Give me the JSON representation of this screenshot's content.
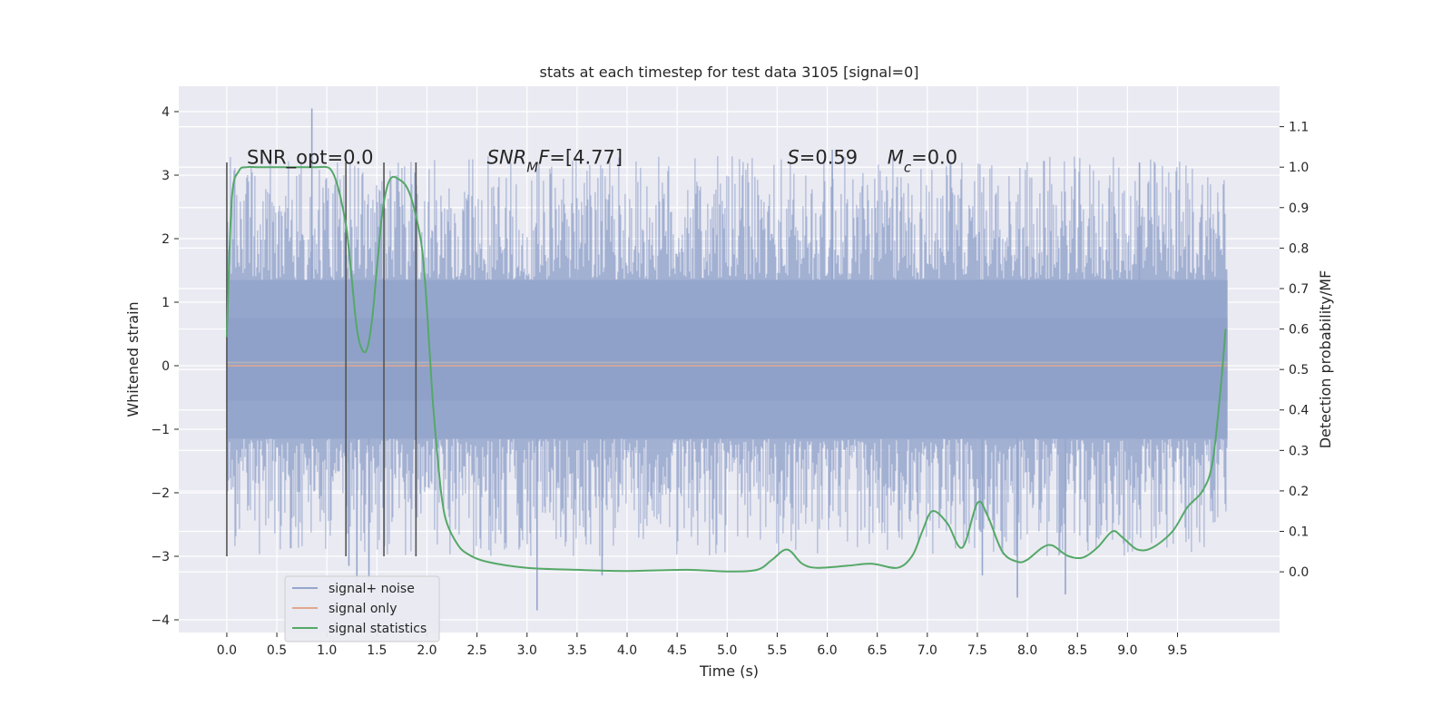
{
  "chart_data": {
    "type": "line",
    "title": "stats at each timestep for test data 3105 [signal=0]",
    "xlabel": "Time (s)",
    "ylabel": "Whitened strain",
    "y2label": "Detection probability/MF",
    "xlim": [
      -0.48,
      10.52
    ],
    "ylim": [
      -4.2,
      4.4
    ],
    "y2lim": [
      -0.15,
      1.2
    ],
    "x_ticks": [
      0.0,
      0.5,
      1.0,
      1.5,
      2.0,
      2.5,
      3.0,
      3.5,
      4.0,
      4.5,
      5.0,
      5.5,
      6.0,
      6.5,
      7.0,
      7.5,
      8.0,
      8.5,
      9.0,
      9.5
    ],
    "x_tick_labels": [
      "0.0",
      "0.5",
      "1.0",
      "1.5",
      "2.0",
      "2.5",
      "3.0",
      "3.5",
      "4.0",
      "4.5",
      "5.0",
      "5.5",
      "6.0",
      "6.5",
      "7.0",
      "7.5",
      "8.0",
      "8.5",
      "9.0",
      "9.5"
    ],
    "y_ticks": [
      -4,
      -3,
      -2,
      -1,
      0,
      1,
      2,
      3,
      4
    ],
    "y_tick_labels": [
      "−4",
      "−3",
      "−2",
      "−1",
      "0",
      "1",
      "2",
      "3",
      "4"
    ],
    "y2_ticks": [
      0.0,
      0.1,
      0.2,
      0.3,
      0.4,
      0.5,
      0.6,
      0.7,
      0.8,
      0.9,
      1.0,
      1.1
    ],
    "y2_tick_labels": [
      "0.0",
      "0.1",
      "0.2",
      "0.3",
      "0.4",
      "0.5",
      "0.6",
      "0.7",
      "0.8",
      "0.9",
      "1.0",
      "1.1"
    ],
    "grid": true,
    "legend_position": "lower-left",
    "noise": {
      "x_range": [
        0.0,
        10.0
      ],
      "band_outer": [
        -1.15,
        1.35
      ],
      "band_inner": [
        -0.55,
        0.75
      ],
      "spike_max_range": [
        1.4,
        3.3
      ],
      "spike_min_range": [
        -3.0,
        -1.2
      ],
      "highlight_spikes": [
        {
          "x": 0.85,
          "y": 4.05
        },
        {
          "x": 1.22,
          "y": -3.15
        },
        {
          "x": 1.3,
          "y": -3.5
        },
        {
          "x": 1.42,
          "y": -3.4
        },
        {
          "x": 3.1,
          "y": -3.85
        },
        {
          "x": 3.75,
          "y": -3.3
        },
        {
          "x": 6.05,
          "y": 3.4
        },
        {
          "x": 7.55,
          "y": -3.3
        },
        {
          "x": 7.9,
          "y": -3.65
        },
        {
          "x": 8.38,
          "y": -3.6
        },
        {
          "x": 9.12,
          "y": 3.2
        }
      ]
    },
    "series": [
      {
        "name": "signal+ noise",
        "color": "#95a6cc"
      },
      {
        "name": "signal only",
        "color": "#e1a78d",
        "y": 0.0
      },
      {
        "name": "signal statistics",
        "color": "#55a868",
        "x": [
          0.0,
          0.05,
          0.12,
          0.2,
          0.3,
          0.5,
          0.7,
          0.9,
          1.0,
          1.05,
          1.1,
          1.15,
          1.2,
          1.25,
          1.3,
          1.35,
          1.4,
          1.45,
          1.5,
          1.55,
          1.6,
          1.65,
          1.72,
          1.8,
          1.87,
          1.95,
          2.0,
          2.05,
          2.1,
          2.15,
          2.2,
          2.3,
          2.4,
          2.6,
          3.0,
          3.5,
          4.0,
          4.6,
          5.0,
          5.3,
          5.45,
          5.6,
          5.75,
          5.9,
          6.2,
          6.45,
          6.7,
          6.85,
          6.95,
          7.05,
          7.2,
          7.35,
          7.5,
          7.6,
          7.75,
          7.9,
          8.0,
          8.15,
          8.25,
          8.4,
          8.55,
          8.7,
          8.85,
          8.95,
          9.1,
          9.25,
          9.45,
          9.6,
          9.75,
          9.85,
          9.93,
          9.98
        ],
        "y": [
          0.58,
          0.92,
          0.99,
          1.0,
          1.0,
          1.0,
          1.0,
          1.0,
          1.0,
          0.99,
          0.96,
          0.91,
          0.84,
          0.72,
          0.6,
          0.55,
          0.55,
          0.62,
          0.75,
          0.88,
          0.95,
          0.975,
          0.97,
          0.95,
          0.9,
          0.8,
          0.65,
          0.45,
          0.3,
          0.18,
          0.12,
          0.07,
          0.045,
          0.025,
          0.01,
          0.005,
          0.002,
          0.005,
          0.001,
          0.005,
          0.03,
          0.055,
          0.02,
          0.01,
          0.015,
          0.02,
          0.01,
          0.04,
          0.1,
          0.15,
          0.12,
          0.06,
          0.17,
          0.14,
          0.05,
          0.025,
          0.03,
          0.06,
          0.065,
          0.04,
          0.035,
          0.06,
          0.1,
          0.085,
          0.055,
          0.06,
          0.1,
          0.16,
          0.2,
          0.27,
          0.45,
          0.6
        ],
        "axis": "right"
      }
    ],
    "vertical_markers": {
      "x": [
        0.0,
        1.19,
        1.57,
        1.89
      ],
      "y_top": 3.2,
      "y_bottom": -3.0,
      "color": "#555555"
    },
    "annotations": [
      {
        "id": "snr-opt",
        "parts": [
          {
            "t": "SNR_opt=0.0"
          }
        ],
        "x": 0.2,
        "y": 3.18
      },
      {
        "id": "snr-mf",
        "parts": [
          {
            "t": "SNR",
            "i": true
          },
          {
            "t": "M",
            "i": true,
            "sub": true
          },
          {
            "t": "F",
            "i": true
          },
          {
            "t": "=[4.77]"
          }
        ],
        "x": 2.6,
        "y": 3.18
      },
      {
        "id": "s",
        "parts": [
          {
            "t": "S",
            "i": true
          },
          {
            "t": "=0.59"
          }
        ],
        "x": 5.6,
        "y": 3.18
      },
      {
        "id": "mc",
        "parts": [
          {
            "t": "M",
            "i": true
          },
          {
            "t": "c",
            "i": true,
            "sub": true
          },
          {
            "t": "=0.0"
          }
        ],
        "x": 6.6,
        "y": 3.18
      }
    ]
  }
}
